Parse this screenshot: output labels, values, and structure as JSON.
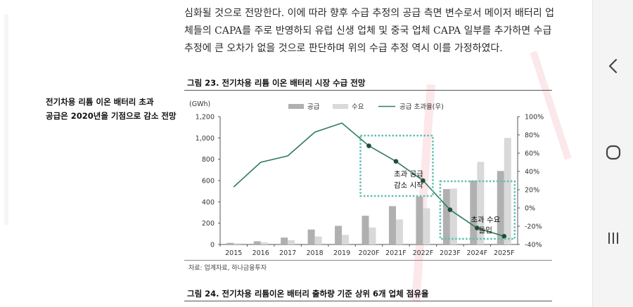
{
  "document": {
    "paragraph_lines": [
      "심화될 것으로 전망한다. 이에 따라 향후 수급 추정의 공급 측면 변수로서 메이저 배터리 업",
      "체들의 CAPA를 주로 반영하되 유럽 신생 업체 및 중국 업체 CAPA 일부를 추가하면 수급",
      "추정에 큰 오차가 없을 것으로 판단하며 위의 수급 추정 역시 이를 가정하였다."
    ],
    "side_note_lines": [
      "전기차용 리튬 이온 배터리 초과",
      "공급은 2020년을 기점으로 감소 전망"
    ],
    "figure23_title": "그림 23. 전기차용 리튬 이온 배터리 시장 수급 전망",
    "source": "자료: 업계자료, 하나금융투자",
    "figure24_title": "그림 24. 전기차용 리튬이온 배터리 출하량 기준 상위 6개 업체 점유율"
  },
  "chart_data": {
    "type": "bar",
    "title": "그림 23. 전기차용 리튬 이온 배터리 시장 수급 전망",
    "unit_label": "(GWh)",
    "categories": [
      "2015",
      "2016",
      "2017",
      "2018",
      "2019",
      "2020F",
      "2021F",
      "2022F",
      "2023F",
      "2024F",
      "2025F"
    ],
    "series": [
      {
        "name": "공급",
        "kind": "bar",
        "axis": "left",
        "color": "#b0b0b0",
        "values": [
          15,
          30,
          65,
          140,
          175,
          270,
          360,
          450,
          520,
          600,
          690
        ]
      },
      {
        "name": "수요",
        "kind": "bar",
        "axis": "left",
        "color": "#d9d9d9",
        "values": [
          12,
          20,
          40,
          75,
          90,
          160,
          235,
          340,
          525,
          775,
          1000
        ]
      },
      {
        "name": "공급 초과율(우)",
        "kind": "line",
        "axis": "right",
        "color": "#2e7d5b",
        "values": [
          23,
          50,
          57,
          83,
          93,
          68,
          51,
          30,
          -2,
          -22,
          -31
        ]
      }
    ],
    "left_axis": {
      "min": 0,
      "max": 1200,
      "ticks": [
        0,
        200,
        400,
        600,
        800,
        "1,000",
        "1,200"
      ]
    },
    "right_axis": {
      "min": -40,
      "max": 100,
      "ticks": [
        "-40%",
        "-20%",
        "0%",
        "20%",
        "40%",
        "60%",
        "80%",
        "100%"
      ]
    },
    "annotations": [
      {
        "lines": [
          "초과 공급",
          "감소 시작"
        ]
      },
      {
        "lines": [
          "초과 수요",
          "돌입"
        ]
      }
    ],
    "legend_position": "top"
  },
  "nav": {
    "back_label": "‹",
    "home_label": "◯",
    "recents_label": "|||"
  }
}
